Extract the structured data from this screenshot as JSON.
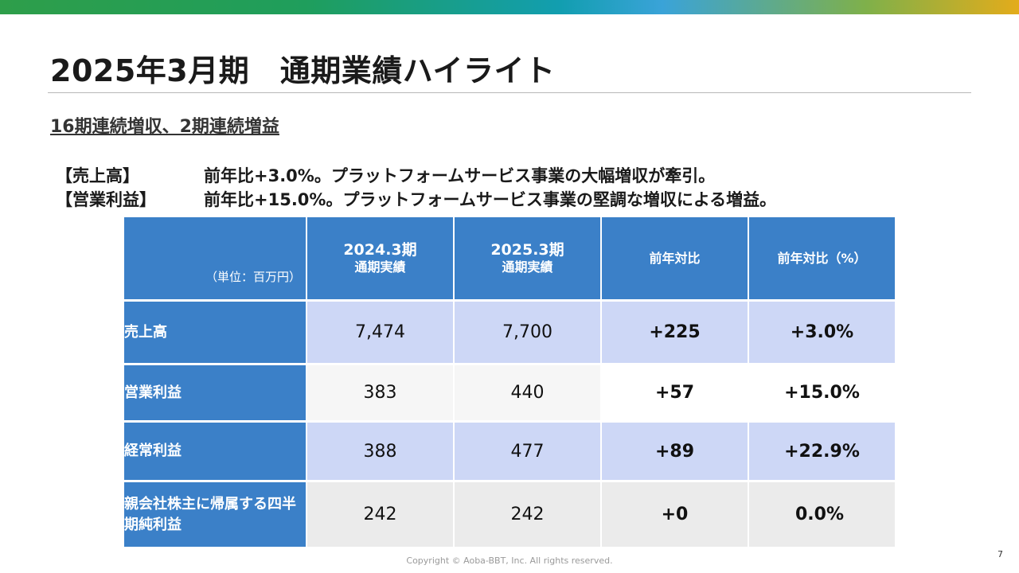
{
  "colors": {
    "header_blue": "#3b80c8",
    "row_lavender": "#cdd7f6",
    "row_light": "#f6f6f6",
    "row_gray": "#ebebeb"
  },
  "title": "2025年3月期　通期業績ハイライト",
  "subtitle": "16期連続増収、2期連続増益",
  "summary": [
    {
      "label": "【売上高】",
      "text": "前年比+3.0%。プラットフォームサービス事業の大幅増収が牽引。"
    },
    {
      "label": "【営業利益】",
      "text": "前年比+15.0%。プラットフォームサービス事業の堅調な増収による増益。"
    }
  ],
  "table": {
    "unit_label": "（単位：百万円）",
    "headers": [
      {
        "main": "2024.3期",
        "sub": "通期実績"
      },
      {
        "main": "2025.3期",
        "sub": "通期実績"
      },
      {
        "main": "前年対比",
        "sub": ""
      },
      {
        "main": "前年対比（%）",
        "sub": ""
      }
    ],
    "rows": [
      {
        "label": "売上高",
        "fy2024": "7,474",
        "fy2025": "7,700",
        "diff": "+225",
        "pct": "+3.0%"
      },
      {
        "label": "営業利益",
        "fy2024": "383",
        "fy2025": "440",
        "diff": "+57",
        "pct": "+15.0%"
      },
      {
        "label": "経常利益",
        "fy2024": "388",
        "fy2025": "477",
        "diff": "+89",
        "pct": "+22.9%"
      },
      {
        "label": "親会社株主に帰属する四半期純利益",
        "fy2024": "242",
        "fy2025": "242",
        "diff": "+0",
        "pct": "0.0%"
      }
    ]
  },
  "footer": "Copyright © Aoba-BBT, Inc.  All rights reserved.",
  "page_number": "7"
}
